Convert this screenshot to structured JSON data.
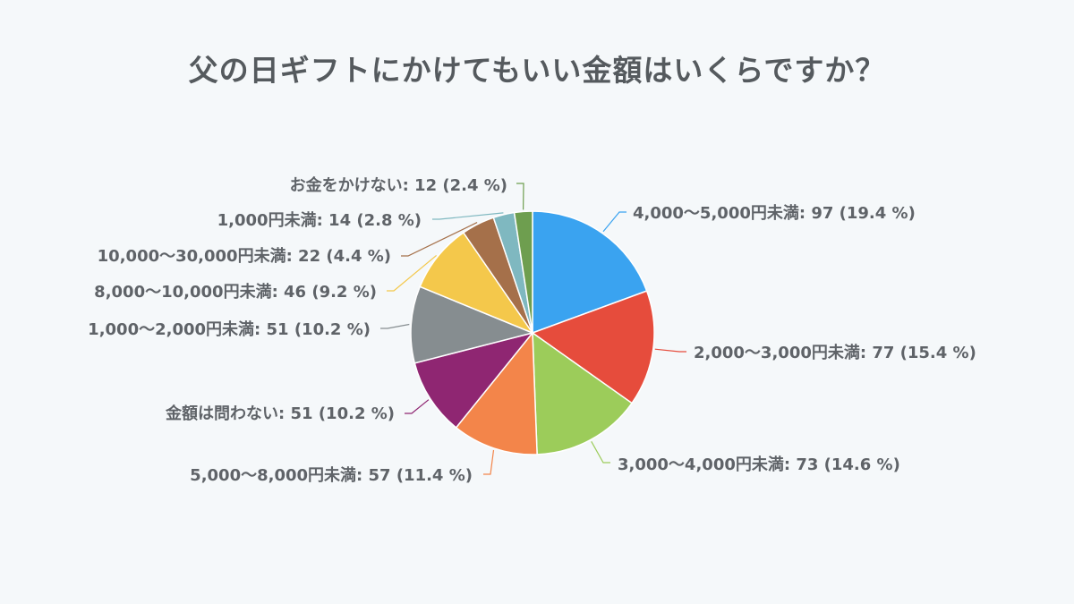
{
  "chart_data": {
    "type": "pie",
    "title": "父の日ギフトにかけてもいい金額はいくらですか？",
    "slices": [
      {
        "name": "4,000〜5,000円未満",
        "value": 97,
        "percent": "19.4 %",
        "color": "#3aa3f0"
      },
      {
        "name": "2,000〜3,000円未満",
        "value": 77,
        "percent": "15.4 %",
        "color": "#e64c3c"
      },
      {
        "name": "3,000〜4,000円未満",
        "value": 73,
        "percent": "14.6 %",
        "color": "#9ccc5a"
      },
      {
        "name": "5,000〜8,000円未満",
        "value": 57,
        "percent": "11.4 %",
        "color": "#f3854a"
      },
      {
        "name": "金額は問わない",
        "value": 51,
        "percent": "10.2 %",
        "color": "#8f2672"
      },
      {
        "name": "1,000〜2,000円未満",
        "value": 51,
        "percent": "10.2 %",
        "color": "#868d90"
      },
      {
        "name": "8,000〜10,000円未満",
        "value": 46,
        "percent": "9.2 %",
        "color": "#f4c84b"
      },
      {
        "name": "10,000〜30,000円未満",
        "value": 22,
        "percent": "4.4 %",
        "color": "#a5704a"
      },
      {
        "name": "1,000円未満",
        "value": 14,
        "percent": "2.8 %",
        "color": "#7fb8c0"
      },
      {
        "name": "お金をかけない",
        "value": 12,
        "percent": "2.4 %",
        "color": "#6e9e4f"
      }
    ],
    "labels": [
      "4,000〜5,000円未満: 97 (19.4 %)",
      "2,000〜3,000円未満: 77 (15.4 %)",
      "3,000〜4,000円未満: 73 (14.6 %)",
      "5,000〜8,000円未満: 57 (11.4 %)",
      "金額は問わない: 51 (10.2 %)",
      "1,000〜2,000円未満: 51 (10.2 %)",
      "8,000〜10,000円未満: 46 (9.2 %)",
      "10,000〜30,000円未満: 22 (4.4 %)",
      "1,000円未満: 14 (2.8 %)",
      "お金をかけない: 12 (2.4 %)"
    ]
  }
}
